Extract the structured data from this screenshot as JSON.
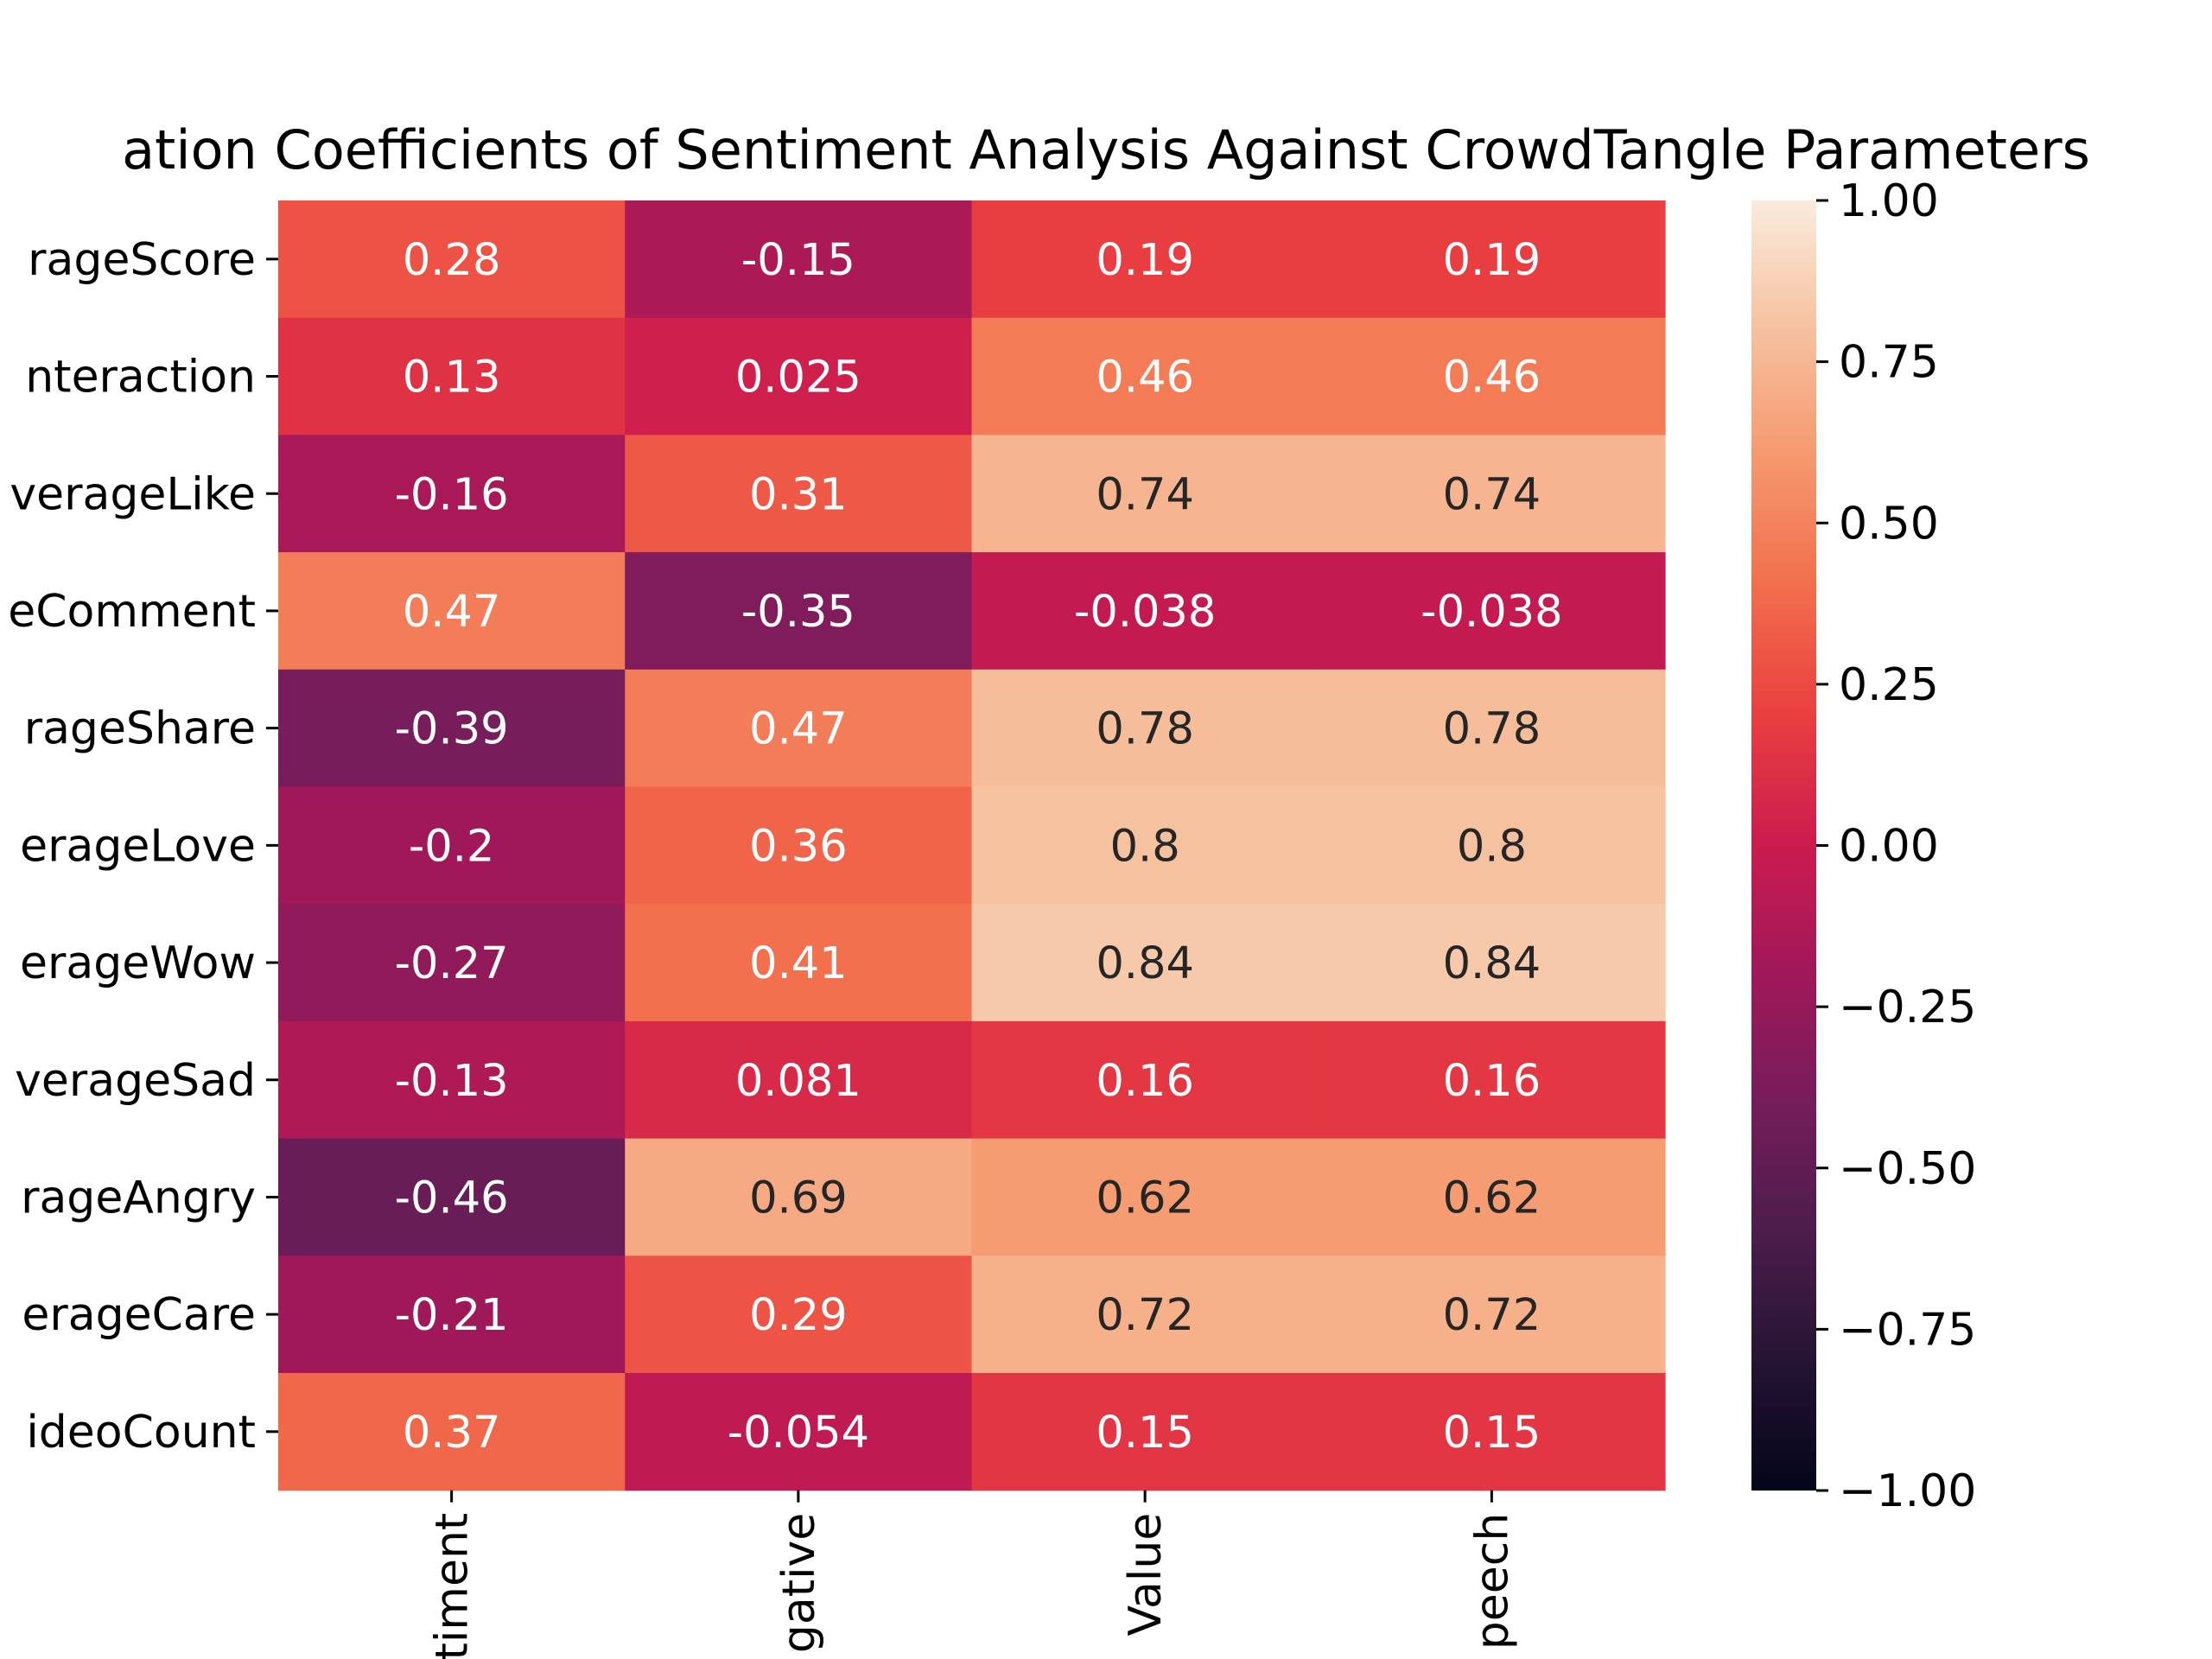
{
  "chart_data": {
    "type": "heatmap",
    "title": "ation Coefficients of Sentiment Analysis Against CrowdTangle Parameters",
    "row_labels": [
      "rageScore",
      "nteraction",
      "verageLike",
      "eComment",
      "rageShare",
      "erageLove",
      "erageWow",
      "verageSad",
      "rageAngry",
      "erageCare",
      "ideoCount"
    ],
    "col_labels": [
      "timent",
      "gative",
      "Value",
      "peech"
    ],
    "values": [
      [
        0.28,
        -0.15,
        0.19,
        0.19
      ],
      [
        0.13,
        0.025,
        0.46,
        0.46
      ],
      [
        -0.16,
        0.31,
        0.74,
        0.74
      ],
      [
        0.47,
        -0.35,
        -0.038,
        -0.038
      ],
      [
        -0.39,
        0.47,
        0.78,
        0.78
      ],
      [
        -0.2,
        0.36,
        0.8,
        0.8
      ],
      [
        -0.27,
        0.41,
        0.84,
        0.84
      ],
      [
        -0.13,
        0.081,
        0.16,
        0.16
      ],
      [
        -0.46,
        0.69,
        0.62,
        0.62
      ],
      [
        -0.21,
        0.29,
        0.72,
        0.72
      ],
      [
        0.37,
        -0.054,
        0.15,
        0.15
      ]
    ],
    "annotations": [
      [
        "0.28",
        "-0.15",
        "0.19",
        "0.19"
      ],
      [
        "0.13",
        "0.025",
        "0.46",
        "0.46"
      ],
      [
        "-0.16",
        "0.31",
        "0.74",
        "0.74"
      ],
      [
        "0.47",
        "-0.35",
        "-0.038",
        "-0.038"
      ],
      [
        "-0.39",
        "0.47",
        "0.78",
        "0.78"
      ],
      [
        "-0.2",
        "0.36",
        "0.8",
        "0.8"
      ],
      [
        "-0.27",
        "0.41",
        "0.84",
        "0.84"
      ],
      [
        "-0.13",
        "0.081",
        "0.16",
        "0.16"
      ],
      [
        "-0.46",
        "0.69",
        "0.62",
        "0.62"
      ],
      [
        "-0.21",
        "0.29",
        "0.72",
        "0.72"
      ],
      [
        "0.37",
        "-0.054",
        "0.15",
        "0.15"
      ]
    ],
    "colorbar": {
      "range": [
        -1.0,
        1.0
      ],
      "ticks": [
        1.0,
        0.75,
        0.5,
        0.25,
        0.0,
        -0.25,
        -0.5,
        -0.75,
        -1.0
      ],
      "tick_labels": [
        "1.00",
        "0.75",
        "0.50",
        "0.25",
        "0.00",
        "−0.25",
        "−0.50",
        "−0.75",
        "−1.00"
      ],
      "colormap": "rocket"
    },
    "text_colors": {
      "light": "#ffffff",
      "dark": "#262626"
    }
  }
}
